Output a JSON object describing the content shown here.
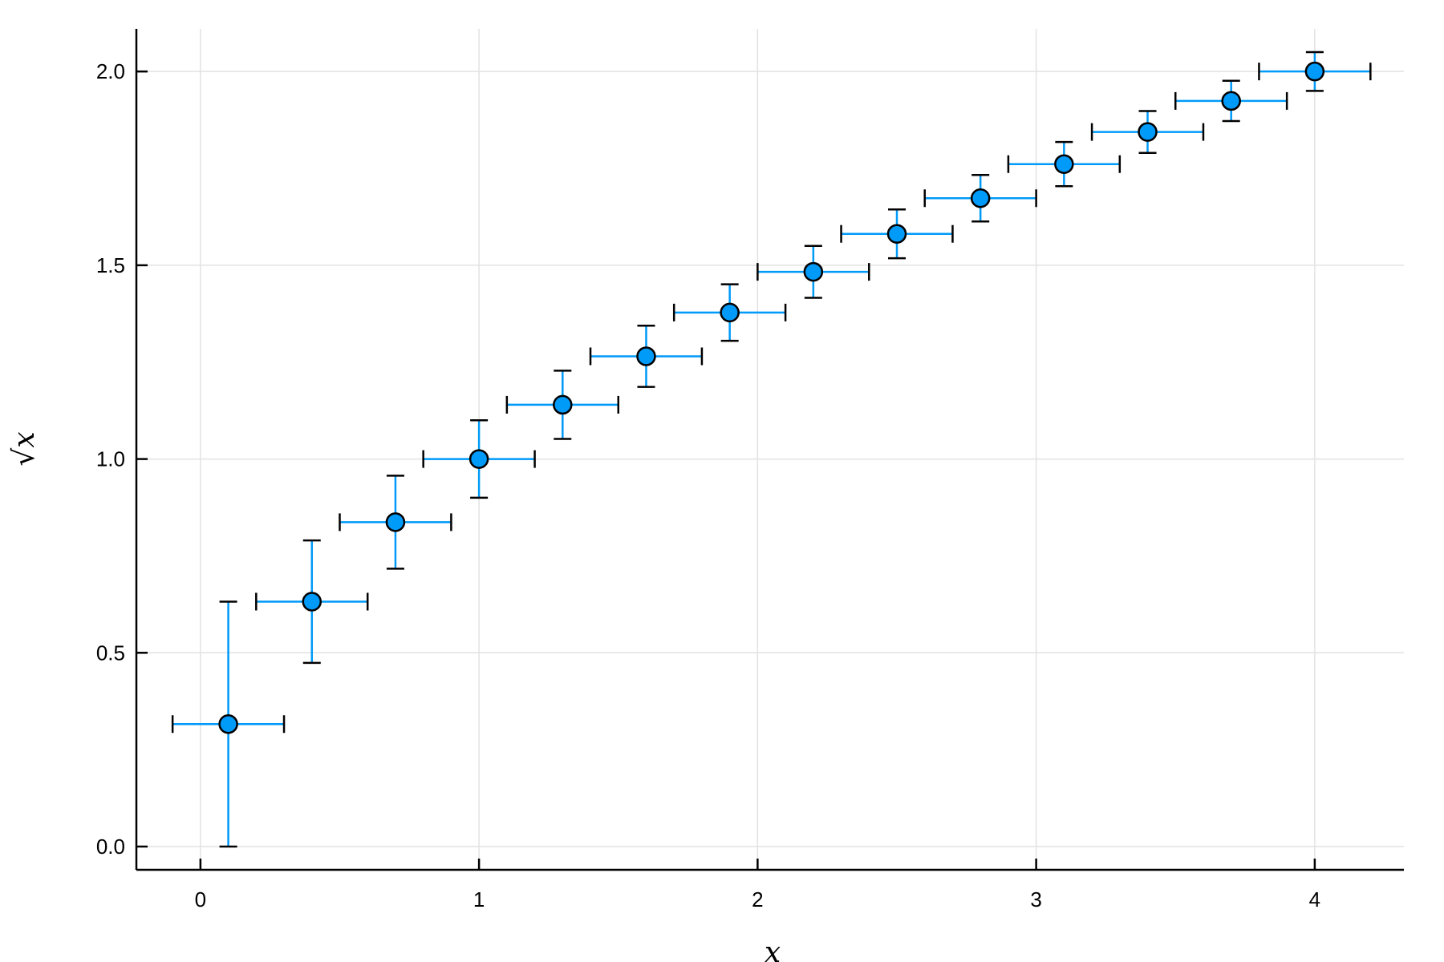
{
  "chart_data": {
    "type": "scatter",
    "title": "",
    "xlabel": "x",
    "ylabel": "√x",
    "xlim": [
      -0.23,
      4.32
    ],
    "ylim": [
      -0.06,
      2.11
    ],
    "xticks": [
      0,
      1,
      2,
      3,
      4
    ],
    "yticks": [
      0.0,
      0.5,
      1.0,
      1.5,
      2.0
    ],
    "xtick_labels": [
      "0",
      "1",
      "2",
      "3",
      "4"
    ],
    "ytick_labels": [
      "0.0",
      "0.5",
      "1.0",
      "1.5",
      "2.0"
    ],
    "grid": true,
    "legend": "none",
    "colors": {
      "marker": "#009af9",
      "error_bar": "#009af9",
      "cap": "#000000",
      "grid": "#e2e2e2",
      "axis": "#000000"
    },
    "series": [
      {
        "x": [
          0.1,
          0.4,
          0.7,
          1.0,
          1.3,
          1.6,
          1.9,
          2.2,
          2.5,
          2.8,
          3.1,
          3.4,
          3.7,
          4.0
        ],
        "y": [
          0.316,
          0.632,
          0.837,
          1.0,
          1.14,
          1.265,
          1.378,
          1.483,
          1.581,
          1.673,
          1.761,
          1.844,
          1.924,
          2.0
        ],
        "x_error": [
          0.2,
          0.2,
          0.2,
          0.2,
          0.2,
          0.2,
          0.2,
          0.2,
          0.2,
          0.2,
          0.2,
          0.2,
          0.2,
          0.2
        ],
        "y_error": [
          0.316,
          0.158,
          0.12,
          0.1,
          0.088,
          0.079,
          0.073,
          0.067,
          0.063,
          0.06,
          0.057,
          0.054,
          0.052,
          0.05
        ]
      }
    ]
  }
}
